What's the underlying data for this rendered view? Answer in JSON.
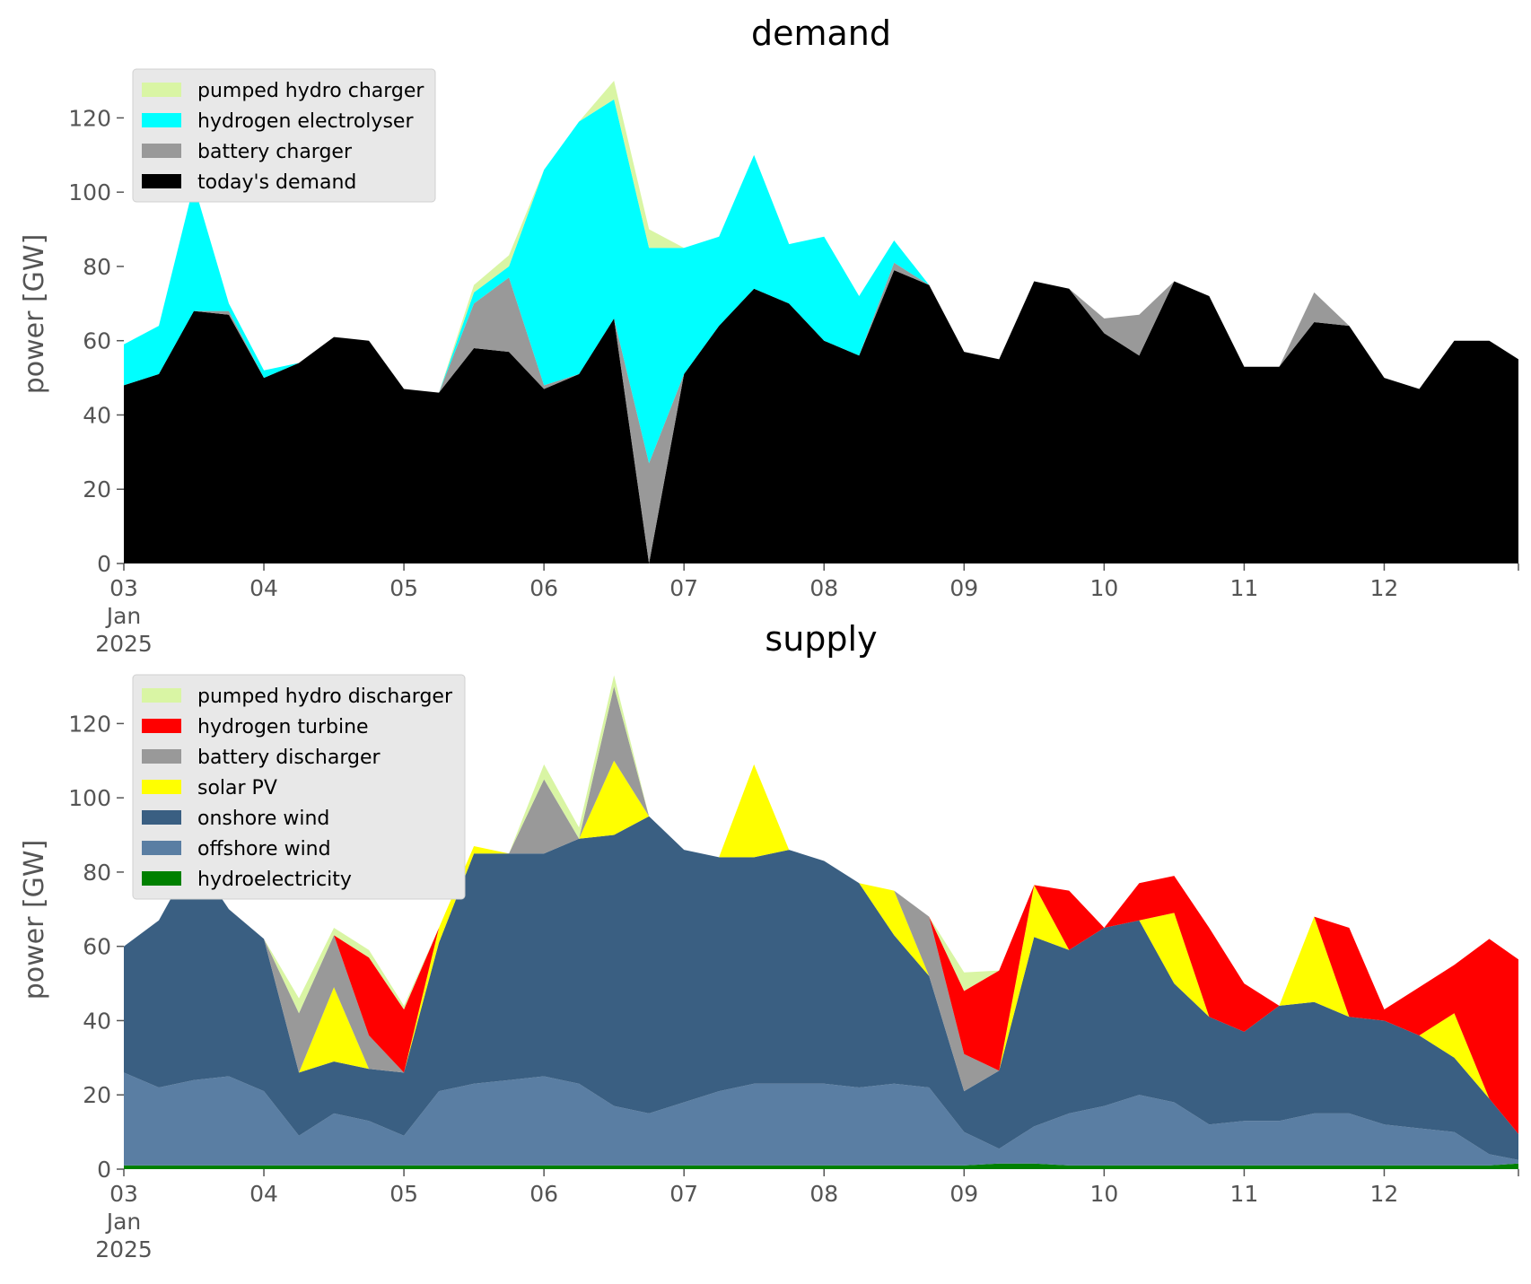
{
  "chart_data": [
    {
      "type": "area",
      "stacked": true,
      "title": "demand",
      "ylabel": "power [GW]",
      "xlabel": "",
      "ylim": [
        0,
        130
      ],
      "yticks": [
        0,
        20,
        40,
        60,
        80,
        100,
        120
      ],
      "xlim": [
        "2025-01-03 00:00",
        "2025-01-12 23:00"
      ],
      "xticks": [
        {
          "date": "2025-01-03",
          "label": "03",
          "label2": "Jan",
          "label3": "2025"
        },
        {
          "date": "2025-01-04",
          "label": "04"
        },
        {
          "date": "2025-01-05",
          "label": "05"
        },
        {
          "date": "2025-01-06",
          "label": "06"
        },
        {
          "date": "2025-01-07",
          "label": "07"
        },
        {
          "date": "2025-01-08",
          "label": "08"
        },
        {
          "date": "2025-01-09",
          "label": "09"
        },
        {
          "date": "2025-01-10",
          "label": "10"
        },
        {
          "date": "2025-01-11",
          "label": "11"
        },
        {
          "date": "2025-01-12",
          "label": "12"
        }
      ],
      "grid": false,
      "legend_position": "top-left",
      "x": [
        "2025-01-03 00:00",
        "2025-01-03 06:00",
        "2025-01-03 12:00",
        "2025-01-03 18:00",
        "2025-01-04 00:00",
        "2025-01-04 06:00",
        "2025-01-04 12:00",
        "2025-01-04 18:00",
        "2025-01-05 00:00",
        "2025-01-05 06:00",
        "2025-01-05 12:00",
        "2025-01-05 18:00",
        "2025-01-06 00:00",
        "2025-01-06 06:00",
        "2025-01-06 12:00",
        "2025-01-06 18:00",
        "2025-01-07 00:00",
        "2025-01-07 06:00",
        "2025-01-07 12:00",
        "2025-01-07 18:00",
        "2025-01-08 00:00",
        "2025-01-08 06:00",
        "2025-01-08 12:00",
        "2025-01-08 18:00",
        "2025-01-09 00:00",
        "2025-01-09 06:00",
        "2025-01-09 12:00",
        "2025-01-09 18:00",
        "2025-01-10 00:00",
        "2025-01-10 06:00",
        "2025-01-10 12:00",
        "2025-01-10 18:00",
        "2025-01-11 00:00",
        "2025-01-11 06:00",
        "2025-01-11 12:00",
        "2025-01-11 18:00",
        "2025-01-12 00:00",
        "2025-01-12 06:00",
        "2025-01-12 12:00",
        "2025-01-12 18:00",
        "2025-01-12 23:00"
      ],
      "series": [
        {
          "name": "today's demand",
          "color": "#000000",
          "values": [
            48,
            51,
            68,
            67,
            50,
            54,
            61,
            60,
            47,
            46,
            58,
            57,
            47,
            51,
            66,
            0,
            51,
            64,
            74,
            70,
            60,
            56,
            79,
            75,
            57,
            55,
            76,
            74,
            62,
            56,
            76,
            72,
            53,
            53,
            65,
            64,
            50,
            47,
            60,
            60,
            55
          ]
        },
        {
          "name": "battery charger",
          "color": "#999999",
          "values": [
            0,
            0,
            0,
            1,
            0,
            0,
            0,
            0,
            0,
            0,
            12,
            20,
            1,
            0,
            0,
            27,
            0,
            0,
            0,
            0,
            0,
            0,
            2,
            0,
            0,
            0,
            0,
            0,
            4,
            11,
            0,
            0,
            0,
            0,
            8,
            0,
            0,
            0,
            0,
            0,
            0
          ]
        },
        {
          "name": "hydrogen electrolyser",
          "color": "#00ffff",
          "values": [
            11,
            13,
            34,
            2,
            2,
            0,
            0,
            0,
            0,
            0,
            3,
            3,
            58,
            68,
            59,
            58,
            34,
            24,
            36,
            16,
            28,
            16,
            6,
            0,
            0,
            0,
            0,
            0,
            0,
            0,
            0,
            0,
            0,
            0,
            0,
            0,
            0,
            0,
            0,
            0,
            0
          ]
        },
        {
          "name": "pumped hydro charger",
          "color": "#d9f5a4",
          "values": [
            0,
            0,
            0,
            0,
            0,
            0,
            0,
            0,
            0,
            0,
            2,
            3,
            0,
            0,
            5,
            5,
            0,
            0,
            0,
            0,
            0,
            0,
            0,
            0,
            0,
            0,
            0,
            0,
            0,
            0,
            0,
            0,
            0,
            0,
            0,
            0,
            0,
            0,
            0,
            0,
            0
          ]
        }
      ],
      "legend_order": [
        "pumped hydro charger",
        "hydrogen electrolyser",
        "battery charger",
        "today's demand"
      ]
    },
    {
      "type": "area",
      "stacked": true,
      "title": "supply",
      "ylabel": "power [GW]",
      "xlabel": "",
      "ylim": [
        0,
        130
      ],
      "yticks": [
        0,
        20,
        40,
        60,
        80,
        100,
        120
      ],
      "xlim": [
        "2025-01-03 00:00",
        "2025-01-12 23:00"
      ],
      "xticks": [
        {
          "date": "2025-01-03",
          "label": "03",
          "label2": "Jan",
          "label3": "2025"
        },
        {
          "date": "2025-01-04",
          "label": "04"
        },
        {
          "date": "2025-01-05",
          "label": "05"
        },
        {
          "date": "2025-01-06",
          "label": "06"
        },
        {
          "date": "2025-01-07",
          "label": "07"
        },
        {
          "date": "2025-01-08",
          "label": "08"
        },
        {
          "date": "2025-01-09",
          "label": "09"
        },
        {
          "date": "2025-01-10",
          "label": "10"
        },
        {
          "date": "2025-01-11",
          "label": "11"
        },
        {
          "date": "2025-01-12",
          "label": "12"
        }
      ],
      "grid": false,
      "legend_position": "top-left",
      "x": [
        "2025-01-03 00:00",
        "2025-01-03 06:00",
        "2025-01-03 12:00",
        "2025-01-03 18:00",
        "2025-01-04 00:00",
        "2025-01-04 06:00",
        "2025-01-04 12:00",
        "2025-01-04 18:00",
        "2025-01-05 00:00",
        "2025-01-05 06:00",
        "2025-01-05 12:00",
        "2025-01-05 18:00",
        "2025-01-06 00:00",
        "2025-01-06 06:00",
        "2025-01-06 12:00",
        "2025-01-06 18:00",
        "2025-01-07 00:00",
        "2025-01-07 06:00",
        "2025-01-07 12:00",
        "2025-01-07 18:00",
        "2025-01-08 00:00",
        "2025-01-08 06:00",
        "2025-01-08 12:00",
        "2025-01-08 18:00",
        "2025-01-09 00:00",
        "2025-01-09 06:00",
        "2025-01-09 12:00",
        "2025-01-09 18:00",
        "2025-01-10 00:00",
        "2025-01-10 06:00",
        "2025-01-10 12:00",
        "2025-01-10 18:00",
        "2025-01-11 00:00",
        "2025-01-11 06:00",
        "2025-01-11 12:00",
        "2025-01-11 18:00",
        "2025-01-12 00:00",
        "2025-01-12 06:00",
        "2025-01-12 12:00",
        "2025-01-12 18:00",
        "2025-01-12 23:00"
      ],
      "series": [
        {
          "name": "hydroelectricity",
          "color": "#008000",
          "values": [
            1,
            1,
            1,
            1,
            1,
            1,
            1,
            1,
            1,
            1,
            1,
            1,
            1,
            1,
            1,
            1,
            1,
            1,
            1,
            1,
            1,
            1,
            1,
            1,
            1,
            1.5,
            1.5,
            1,
            1,
            1,
            1,
            1,
            1,
            1,
            1,
            1,
            1,
            1,
            1,
            1,
            1.5
          ]
        },
        {
          "name": "offshore wind",
          "color": "#5a7ea3",
          "values": [
            25,
            21,
            23,
            24,
            20,
            8,
            14,
            12,
            8,
            20,
            22,
            23,
            24,
            22,
            16,
            14,
            17,
            20,
            22,
            22,
            22,
            21,
            22,
            21,
            9,
            4,
            10,
            14,
            16,
            19,
            17,
            11,
            12,
            12,
            14,
            14,
            11,
            10,
            9,
            3,
            1
          ]
        },
        {
          "name": "onshore wind",
          "color": "#3a5f82",
          "values": [
            34,
            45,
            60,
            45,
            41,
            17,
            14,
            14,
            17,
            40,
            62,
            61,
            60,
            66,
            73,
            80,
            68,
            63,
            61,
            63,
            60,
            55,
            40,
            30,
            11,
            21,
            51,
            44,
            48,
            47,
            32,
            29,
            24,
            31,
            30,
            26,
            28,
            25,
            20,
            15,
            7
          ]
        },
        {
          "name": "solar PV",
          "color": "#ffff00",
          "values": [
            0,
            0,
            0,
            0,
            0,
            0,
            20,
            0,
            0,
            4,
            2,
            0,
            0,
            0,
            20,
            0,
            0,
            0,
            25,
            0,
            0,
            0,
            12,
            0,
            0,
            0,
            14,
            0,
            0,
            0,
            19,
            0,
            0,
            0,
            23,
            0,
            0,
            0,
            12,
            0,
            0
          ]
        },
        {
          "name": "battery discharger",
          "color": "#999999",
          "values": [
            0,
            0,
            0,
            0,
            0,
            16,
            14,
            9,
            0,
            0,
            0,
            0,
            20,
            0,
            20,
            0,
            0,
            0,
            0,
            0,
            0,
            0,
            0,
            16,
            10,
            0,
            0,
            0,
            0,
            0,
            0,
            0,
            0,
            0,
            0,
            0,
            0,
            0,
            0,
            0,
            0
          ]
        },
        {
          "name": "hydrogen turbine",
          "color": "#ff0000",
          "values": [
            0,
            0,
            0,
            0,
            0,
            0,
            0,
            21,
            17,
            0,
            0,
            0,
            0,
            0,
            0,
            0,
            0,
            0,
            0,
            0,
            0,
            0,
            0,
            0,
            17,
            27,
            0,
            16,
            0,
            10,
            10,
            24,
            13,
            0,
            0,
            24,
            3,
            13,
            13,
            43,
            47
          ]
        },
        {
          "name": "pumped hydro discharger",
          "color": "#d9f5a4",
          "values": [
            0,
            0,
            0,
            0,
            0,
            4,
            2,
            2,
            1,
            0,
            0,
            0,
            4,
            3,
            3,
            0,
            0,
            0,
            0,
            0,
            0,
            0,
            0,
            0,
            5,
            0,
            0,
            0,
            0,
            0,
            0,
            0,
            0,
            0,
            0,
            0,
            0,
            0,
            0,
            0,
            0
          ]
        }
      ],
      "legend_order": [
        "pumped hydro discharger",
        "hydrogen turbine",
        "battery discharger",
        "solar PV",
        "onshore wind",
        "offshore wind",
        "hydroelectricity"
      ]
    }
  ]
}
